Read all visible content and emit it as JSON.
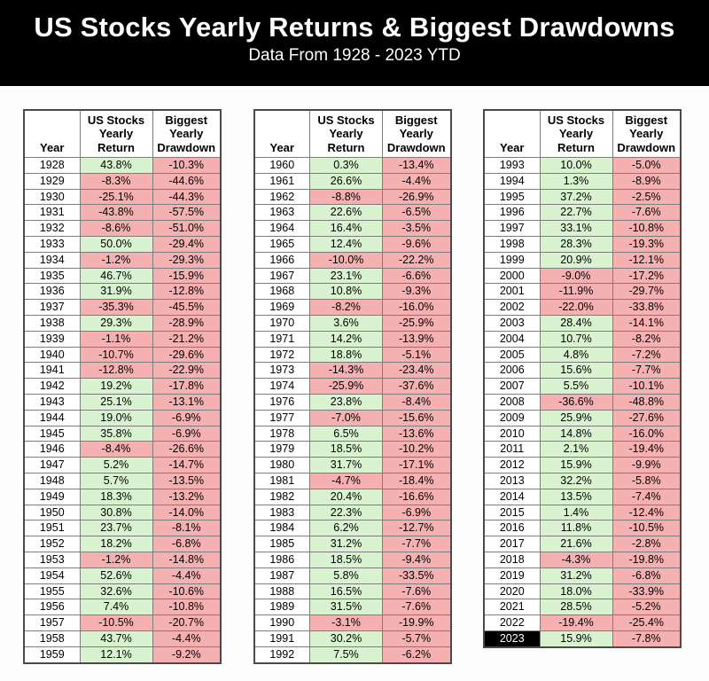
{
  "banner": {
    "title": "US Stocks Yearly Returns & Biggest Drawdowns",
    "subtitle": "Data From 1928 - 2023 YTD"
  },
  "column_headers": {
    "year": "Year",
    "return": "US Stocks\nYearly\nReturn",
    "drawdown": "Biggest\nYearly\nDrawdown"
  },
  "colors": {
    "positive_bg": "#d9f2cf",
    "negative_bg": "#f5b0b2",
    "highlight_bg": "#000000",
    "highlight_text": "#ffffff",
    "banner_bg": "#000000",
    "banner_text": "#ffffff"
  },
  "highlight_year": "2023",
  "chart_data": {
    "type": "table",
    "title": "US Stocks Yearly Returns & Biggest Drawdowns",
    "subtitle": "Data From 1928 - 2023 YTD",
    "columns": [
      "Year",
      "US Stocks Yearly Return",
      "Biggest Yearly Drawdown"
    ],
    "tables": [
      {
        "rows": [
          [
            "1928",
            "43.8%",
            "-10.3%"
          ],
          [
            "1929",
            "-8.3%",
            "-44.6%"
          ],
          [
            "1930",
            "-25.1%",
            "-44.3%"
          ],
          [
            "1931",
            "-43.8%",
            "-57.5%"
          ],
          [
            "1932",
            "-8.6%",
            "-51.0%"
          ],
          [
            "1933",
            "50.0%",
            "-29.4%"
          ],
          [
            "1934",
            "-1.2%",
            "-29.3%"
          ],
          [
            "1935",
            "46.7%",
            "-15.9%"
          ],
          [
            "1936",
            "31.9%",
            "-12.8%"
          ],
          [
            "1937",
            "-35.3%",
            "-45.5%"
          ],
          [
            "1938",
            "29.3%",
            "-28.9%"
          ],
          [
            "1939",
            "-1.1%",
            "-21.2%"
          ],
          [
            "1940",
            "-10.7%",
            "-29.6%"
          ],
          [
            "1941",
            "-12.8%",
            "-22.9%"
          ],
          [
            "1942",
            "19.2%",
            "-17.8%"
          ],
          [
            "1943",
            "25.1%",
            "-13.1%"
          ],
          [
            "1944",
            "19.0%",
            "-6.9%"
          ],
          [
            "1945",
            "35.8%",
            "-6.9%"
          ],
          [
            "1946",
            "-8.4%",
            "-26.6%"
          ],
          [
            "1947",
            "5.2%",
            "-14.7%"
          ],
          [
            "1948",
            "5.7%",
            "-13.5%"
          ],
          [
            "1949",
            "18.3%",
            "-13.2%"
          ],
          [
            "1950",
            "30.8%",
            "-14.0%"
          ],
          [
            "1951",
            "23.7%",
            "-8.1%"
          ],
          [
            "1952",
            "18.2%",
            "-6.8%"
          ],
          [
            "1953",
            "-1.2%",
            "-14.8%"
          ],
          [
            "1954",
            "52.6%",
            "-4.4%"
          ],
          [
            "1955",
            "32.6%",
            "-10.6%"
          ],
          [
            "1956",
            "7.4%",
            "-10.8%"
          ],
          [
            "1957",
            "-10.5%",
            "-20.7%"
          ],
          [
            "1958",
            "43.7%",
            "-4.4%"
          ],
          [
            "1959",
            "12.1%",
            "-9.2%"
          ]
        ]
      },
      {
        "rows": [
          [
            "1960",
            "0.3%",
            "-13.4%"
          ],
          [
            "1961",
            "26.6%",
            "-4.4%"
          ],
          [
            "1962",
            "-8.8%",
            "-26.9%"
          ],
          [
            "1963",
            "22.6%",
            "-6.5%"
          ],
          [
            "1964",
            "16.4%",
            "-3.5%"
          ],
          [
            "1965",
            "12.4%",
            "-9.6%"
          ],
          [
            "1966",
            "-10.0%",
            "-22.2%"
          ],
          [
            "1967",
            "23.1%",
            "-6.6%"
          ],
          [
            "1968",
            "10.8%",
            "-9.3%"
          ],
          [
            "1969",
            "-8.2%",
            "-16.0%"
          ],
          [
            "1970",
            "3.6%",
            "-25.9%"
          ],
          [
            "1971",
            "14.2%",
            "-13.9%"
          ],
          [
            "1972",
            "18.8%",
            "-5.1%"
          ],
          [
            "1973",
            "-14.3%",
            "-23.4%"
          ],
          [
            "1974",
            "-25.9%",
            "-37.6%"
          ],
          [
            "1976",
            "23.8%",
            "-8.4%"
          ],
          [
            "1977",
            "-7.0%",
            "-15.6%"
          ],
          [
            "1978",
            "6.5%",
            "-13.6%"
          ],
          [
            "1979",
            "18.5%",
            "-10.2%"
          ],
          [
            "1980",
            "31.7%",
            "-17.1%"
          ],
          [
            "1981",
            "-4.7%",
            "-18.4%"
          ],
          [
            "1982",
            "20.4%",
            "-16.6%"
          ],
          [
            "1983",
            "22.3%",
            "-6.9%"
          ],
          [
            "1984",
            "6.2%",
            "-12.7%"
          ],
          [
            "1985",
            "31.2%",
            "-7.7%"
          ],
          [
            "1986",
            "18.5%",
            "-9.4%"
          ],
          [
            "1987",
            "5.8%",
            "-33.5%"
          ],
          [
            "1988",
            "16.5%",
            "-7.6%"
          ],
          [
            "1989",
            "31.5%",
            "-7.6%"
          ],
          [
            "1990",
            "-3.1%",
            "-19.9%"
          ],
          [
            "1991",
            "30.2%",
            "-5.7%"
          ],
          [
            "1992",
            "7.5%",
            "-6.2%"
          ]
        ]
      },
      {
        "rows": [
          [
            "1993",
            "10.0%",
            "-5.0%"
          ],
          [
            "1994",
            "1.3%",
            "-8.9%"
          ],
          [
            "1995",
            "37.2%",
            "-2.5%"
          ],
          [
            "1996",
            "22.7%",
            "-7.6%"
          ],
          [
            "1997",
            "33.1%",
            "-10.8%"
          ],
          [
            "1998",
            "28.3%",
            "-19.3%"
          ],
          [
            "1999",
            "20.9%",
            "-12.1%"
          ],
          [
            "2000",
            "-9.0%",
            "-17.2%"
          ],
          [
            "2001",
            "-11.9%",
            "-29.7%"
          ],
          [
            "2002",
            "-22.0%",
            "-33.8%"
          ],
          [
            "2003",
            "28.4%",
            "-14.1%"
          ],
          [
            "2004",
            "10.7%",
            "-8.2%"
          ],
          [
            "2005",
            "4.8%",
            "-7.2%"
          ],
          [
            "2006",
            "15.6%",
            "-7.7%"
          ],
          [
            "2007",
            "5.5%",
            "-10.1%"
          ],
          [
            "2008",
            "-36.6%",
            "-48.8%"
          ],
          [
            "2009",
            "25.9%",
            "-27.6%"
          ],
          [
            "2010",
            "14.8%",
            "-16.0%"
          ],
          [
            "2011",
            "2.1%",
            "-19.4%"
          ],
          [
            "2012",
            "15.9%",
            "-9.9%"
          ],
          [
            "2013",
            "32.2%",
            "-5.8%"
          ],
          [
            "2014",
            "13.5%",
            "-7.4%"
          ],
          [
            "2015",
            "1.4%",
            "-12.4%"
          ],
          [
            "2016",
            "11.8%",
            "-10.5%"
          ],
          [
            "2017",
            "21.6%",
            "-2.8%"
          ],
          [
            "2018",
            "-4.3%",
            "-19.8%"
          ],
          [
            "2019",
            "31.2%",
            "-6.8%"
          ],
          [
            "2020",
            "18.0%",
            "-33.9%"
          ],
          [
            "2021",
            "28.5%",
            "-5.2%"
          ],
          [
            "2022",
            "-19.4%",
            "-25.4%"
          ],
          [
            "2023",
            "15.9%",
            "-7.8%"
          ]
        ]
      }
    ]
  }
}
